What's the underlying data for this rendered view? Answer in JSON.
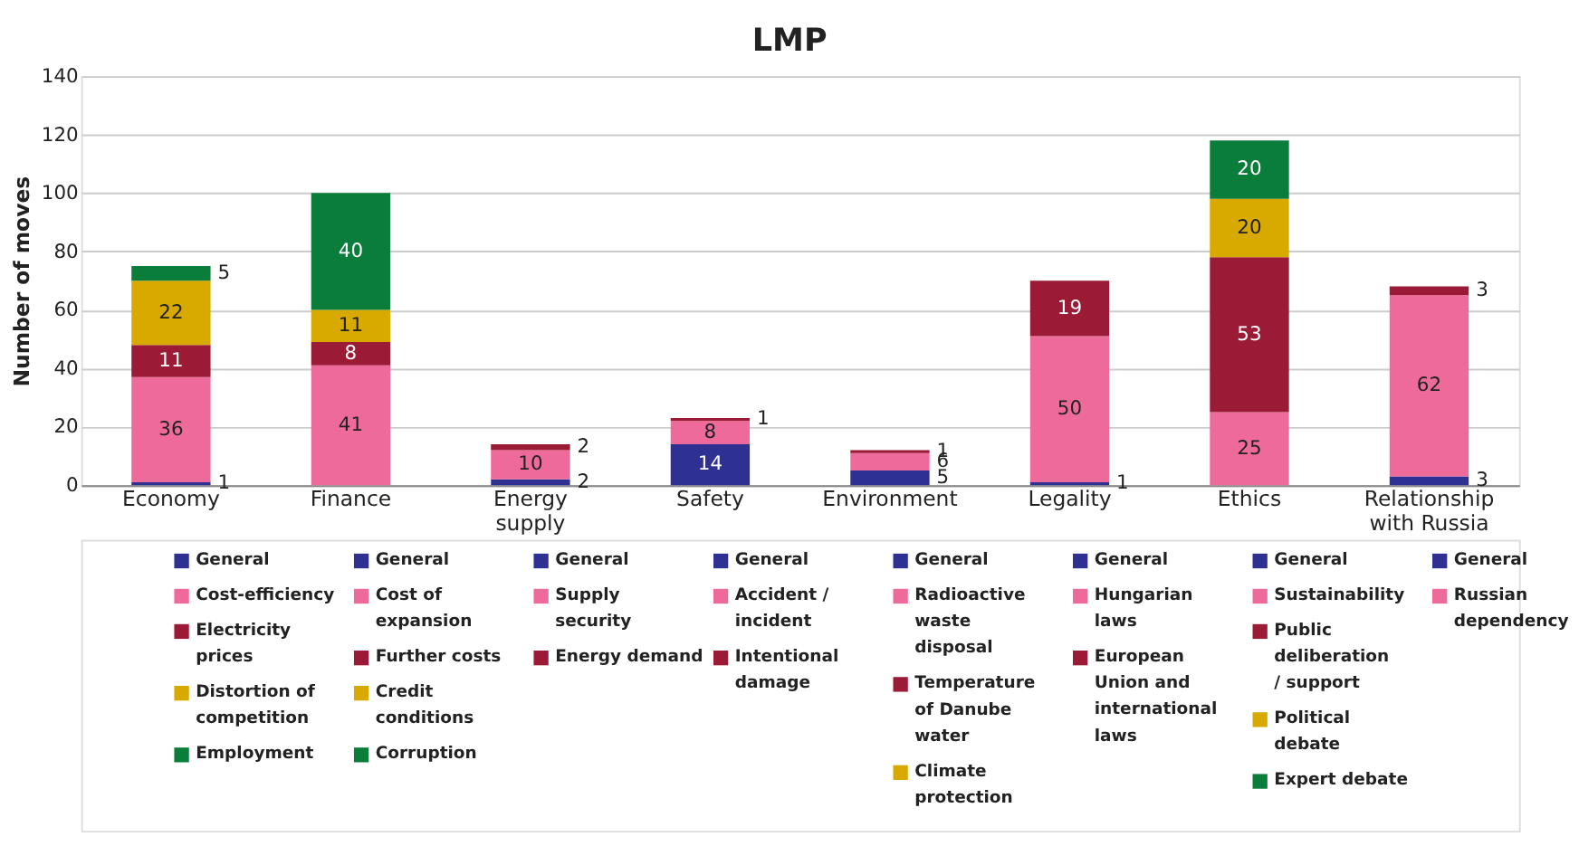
{
  "chart_data": {
    "type": "bar",
    "title": "LMP",
    "ylabel": "Number of moves",
    "stacked": true,
    "data_labels": true,
    "grid": "y",
    "legend": "bottom",
    "ylim": [
      0,
      140
    ],
    "yticks": [
      0,
      20,
      40,
      60,
      80,
      100,
      120,
      140
    ],
    "categories": [
      "Economy",
      "Finance",
      "Energy supply",
      "Safety",
      "Environment",
      "Legality",
      "Ethics",
      "Relationship with Russia"
    ],
    "series": [
      {
        "name": "General",
        "color": "#2e3192",
        "values": [
          1,
          null,
          null,
          null,
          null,
          null,
          null,
          null
        ]
      },
      {
        "name": "Cost-efficiency",
        "color": "#ee6a9b",
        "values": [
          36,
          null,
          null,
          null,
          null,
          null,
          null,
          null
        ]
      },
      {
        "name": "Electricity prices",
        "color": "#9b1a35",
        "values": [
          11,
          null,
          null,
          null,
          null,
          null,
          null,
          null
        ]
      },
      {
        "name": "Distortion of competition",
        "color": "#d8aa00",
        "values": [
          22,
          null,
          null,
          null,
          null,
          null,
          null,
          null
        ]
      },
      {
        "name": "Employment",
        "color": "#0b7d3b",
        "values": [
          5,
          null,
          null,
          null,
          null,
          null,
          null,
          null
        ]
      },
      {
        "name": "General",
        "color": "#2e3192",
        "values": [
          null,
          null,
          null,
          null,
          null,
          null,
          null,
          null
        ]
      },
      {
        "name": "Cost of expansion",
        "color": "#ee6a9b",
        "values": [
          null,
          41,
          null,
          null,
          null,
          null,
          null,
          null
        ]
      },
      {
        "name": "Further costs",
        "color": "#9b1a35",
        "values": [
          null,
          8,
          null,
          null,
          null,
          null,
          null,
          null
        ]
      },
      {
        "name": "Credit conditions",
        "color": "#d8aa00",
        "values": [
          null,
          11,
          null,
          null,
          null,
          null,
          null,
          null
        ]
      },
      {
        "name": "Corruption",
        "color": "#0b7d3b",
        "values": [
          null,
          40,
          null,
          null,
          null,
          null,
          null,
          null
        ]
      },
      {
        "name": "General",
        "color": "#2e3192",
        "values": [
          null,
          null,
          2,
          null,
          null,
          null,
          null,
          null
        ]
      },
      {
        "name": "Supply security",
        "color": "#ee6a9b",
        "values": [
          null,
          null,
          10,
          null,
          null,
          null,
          null,
          null
        ]
      },
      {
        "name": "Energy demand",
        "color": "#9b1a35",
        "values": [
          null,
          null,
          2,
          null,
          null,
          null,
          null,
          null
        ]
      },
      {
        "name": "General",
        "color": "#2e3192",
        "values": [
          null,
          null,
          null,
          14,
          null,
          null,
          null,
          null
        ]
      },
      {
        "name": "Accident / incident",
        "color": "#ee6a9b",
        "values": [
          null,
          null,
          null,
          8,
          null,
          null,
          null,
          null
        ]
      },
      {
        "name": "Intentional damage",
        "color": "#9b1a35",
        "values": [
          null,
          null,
          null,
          1,
          null,
          null,
          null,
          null
        ]
      },
      {
        "name": "General",
        "color": "#2e3192",
        "values": [
          null,
          null,
          null,
          null,
          5,
          null,
          null,
          null
        ]
      },
      {
        "name": "Radioactive waste disposal",
        "color": "#ee6a9b",
        "values": [
          null,
          null,
          null,
          null,
          6,
          null,
          null,
          null
        ]
      },
      {
        "name": "Temperature of Danube water",
        "color": "#9b1a35",
        "values": [
          null,
          null,
          null,
          null,
          1,
          null,
          null,
          null
        ]
      },
      {
        "name": "Climate protection",
        "color": "#d8aa00",
        "values": [
          null,
          null,
          null,
          null,
          null,
          null,
          null,
          null
        ]
      },
      {
        "name": "General",
        "color": "#2e3192",
        "values": [
          null,
          null,
          null,
          null,
          null,
          1,
          null,
          null
        ]
      },
      {
        "name": "Hungarian laws",
        "color": "#ee6a9b",
        "values": [
          null,
          null,
          null,
          null,
          null,
          50,
          null,
          null
        ]
      },
      {
        "name": "European Union and international laws",
        "color": "#9b1a35",
        "values": [
          null,
          null,
          null,
          null,
          null,
          19,
          null,
          null
        ]
      },
      {
        "name": "General",
        "color": "#2e3192",
        "values": [
          null,
          null,
          null,
          null,
          null,
          null,
          null,
          null
        ]
      },
      {
        "name": "Sustainability",
        "color": "#ee6a9b",
        "values": [
          null,
          null,
          null,
          null,
          null,
          null,
          25,
          null
        ]
      },
      {
        "name": "Public deliberation / support",
        "color": "#9b1a35",
        "values": [
          null,
          null,
          null,
          null,
          null,
          null,
          53,
          null
        ]
      },
      {
        "name": "Political debate",
        "color": "#d8aa00",
        "values": [
          null,
          null,
          null,
          null,
          null,
          null,
          20,
          null
        ]
      },
      {
        "name": "Expert debate",
        "color": "#0b7d3b",
        "values": [
          null,
          null,
          null,
          null,
          null,
          null,
          20,
          null
        ]
      },
      {
        "name": "General",
        "color": "#2e3192",
        "values": [
          null,
          null,
          null,
          null,
          null,
          null,
          null,
          3
        ]
      },
      {
        "name": "Russian dependency",
        "color": "#ee6a9b",
        "values": [
          null,
          null,
          null,
          null,
          null,
          null,
          null,
          62
        ]
      },
      {
        "color": "#9b1a35",
        "values": [
          null,
          null,
          null,
          null,
          null,
          null,
          null,
          3
        ]
      }
    ]
  }
}
